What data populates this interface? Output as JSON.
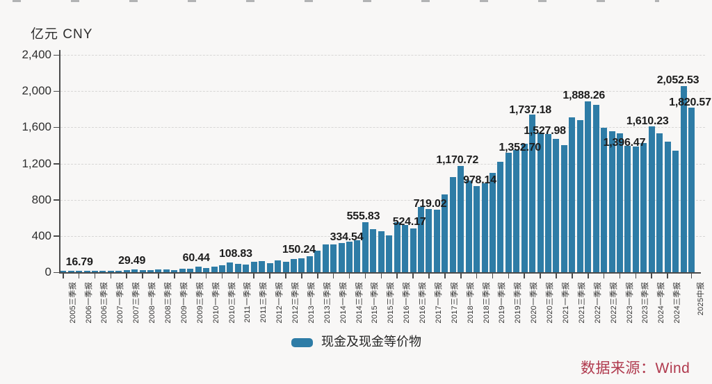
{
  "header": {
    "unit_label": "亿元 CNY"
  },
  "legend": {
    "label": "现金及现金等价物",
    "marker_color": "#2e7ca6"
  },
  "source": {
    "label": "数据来源：Wind",
    "color": "#b03a4e"
  },
  "chart_data": {
    "type": "bar",
    "series_name": "现金及现金等价物",
    "unit": "亿元",
    "ylabel": "亿元 CNY",
    "ylim": [
      0,
      2400
    ],
    "ytick_step": 400,
    "ytick_values": [
      0,
      400,
      800,
      1200,
      1600,
      2000,
      2400
    ],
    "ytick_labels": [
      "0",
      "400",
      "800",
      "1,200",
      "1,600",
      "2,000",
      "2,400"
    ],
    "grid": "horizontal-dashed",
    "legend_position": "bottom-center",
    "bar_color": "#2e7ca6",
    "categories": [
      "2005三季报",
      "2005年报",
      "2006一季报",
      "2006中报",
      "2006三季报",
      "2006年报",
      "2007一季报",
      "2007中报",
      "2007三季报",
      "2007年报",
      "2008一季报",
      "2008中报",
      "2008三季报",
      "2008年报",
      "2009一季报",
      "2009中报",
      "2009三季报",
      "2009年报",
      "2010一季报",
      "2010中报",
      "2010三季报",
      "2010年报",
      "2011一季报",
      "2011中报",
      "2011三季报",
      "2011年报",
      "2012一季报",
      "2012中报",
      "2012三季报",
      "2012年报",
      "2013一季报",
      "2013中报",
      "2013三季报",
      "2013年报",
      "2014一季报",
      "2014中报",
      "2014三季报",
      "2014年报",
      "2015一季报",
      "2015中报",
      "2015三季报",
      "2015年报",
      "2016一季报",
      "2016中报",
      "2016三季报",
      "2016年报",
      "2017一季报",
      "2017中报",
      "2017三季报",
      "2017年报",
      "2018一季报",
      "2018中报",
      "2018三季报",
      "2018年报",
      "2019一季报",
      "2019中报",
      "2019三季报",
      "2019年报",
      "2020一季报",
      "2020中报",
      "2020三季报",
      "2020年报",
      "2021一季报",
      "2021中报",
      "2021三季报",
      "2021年报",
      "2022一季报",
      "2022中报",
      "2022三季报",
      "2022年报",
      "2023一季报",
      "2023中报",
      "2023三季报",
      "2023年报",
      "2024一季报",
      "2024中报",
      "2024三季报",
      "2024年报",
      "2025一季报",
      "2025中报"
    ],
    "values": [
      14,
      16.79,
      13,
      12,
      15,
      18,
      17,
      15,
      26,
      29.49,
      25,
      23,
      28,
      31,
      25,
      36,
      38,
      60.44,
      48,
      61,
      79,
      108.83,
      92,
      87,
      112,
      125,
      97,
      132,
      118,
      146,
      150.24,
      178,
      235,
      304,
      308,
      320,
      334.54,
      355,
      555.83,
      474,
      449,
      407,
      551,
      524.17,
      481,
      719.02,
      695,
      690,
      862,
      1048,
      1170.72,
      1010,
      950,
      978.14,
      1100,
      1220,
      1320,
      1352.7,
      1415,
      1737.18,
      1545,
      1527.98,
      1470,
      1405,
      1710,
      1680,
      1888.26,
      1850,
      1595,
      1560,
      1530,
      1396.47,
      1385,
      1430,
      1610.23,
      1530,
      1445,
      1340,
      2052.53,
      1820.57
    ],
    "x_tick_labels": [
      "2005三季报",
      "2006一季报",
      "2006三季报",
      "2007一季报",
      "2007三季报",
      "2008一季报",
      "2008三季报",
      "2009一季报",
      "2009三季报",
      "2010一季报",
      "2010三季报",
      "2011一季报",
      "2011三季报",
      "2012一季报",
      "2012三季报",
      "2013一季报",
      "2013三季报",
      "2014一季报",
      "2014三季报",
      "2015一季报",
      "2015三季报",
      "2016一季报",
      "2016三季报",
      "2017一季报",
      "2017三季报",
      "2018一季报",
      "2018三季报",
      "2019一季报",
      "2019三季报",
      "2020一季报",
      "2020三季报",
      "2021一季报",
      "2021三季报",
      "2022一季报",
      "2022三季报",
      "2023一季报",
      "2023三季报",
      "2024一季报",
      "2024三季报",
      "2025中报"
    ],
    "x_tick_indices": [
      0,
      2,
      4,
      6,
      8,
      10,
      12,
      14,
      16,
      18,
      20,
      22,
      24,
      26,
      28,
      30,
      32,
      34,
      36,
      38,
      40,
      42,
      44,
      46,
      48,
      50,
      52,
      54,
      56,
      58,
      60,
      62,
      64,
      66,
      68,
      70,
      72,
      74,
      76,
      79
    ],
    "data_labels": [
      {
        "index": 1,
        "text": "16.79"
      },
      {
        "index": 9,
        "text": "29.49"
      },
      {
        "index": 17,
        "text": "60.44"
      },
      {
        "index": 21,
        "text": "108.83"
      },
      {
        "index": 30,
        "text": "150.24"
      },
      {
        "index": 36,
        "text": "334.54"
      },
      {
        "index": 38,
        "text": "555.83"
      },
      {
        "index": 43,
        "text": "524.17"
      },
      {
        "index": 45,
        "text": "719.02"
      },
      {
        "index": 50,
        "text": "1,170.72"
      },
      {
        "index": 53,
        "text": "978.14"
      },
      {
        "index": 57,
        "text": "1,352.70"
      },
      {
        "index": 59,
        "text": "1,737.18"
      },
      {
        "index": 61,
        "text": "1,527.98"
      },
      {
        "index": 66,
        "text": "1,888.26"
      },
      {
        "index": 71,
        "text": "1,396.47"
      },
      {
        "index": 74,
        "text": "1,610.23"
      },
      {
        "index": 78,
        "text": "2,052.53"
      },
      {
        "index": 79,
        "text": "1,820.57"
      }
    ]
  }
}
